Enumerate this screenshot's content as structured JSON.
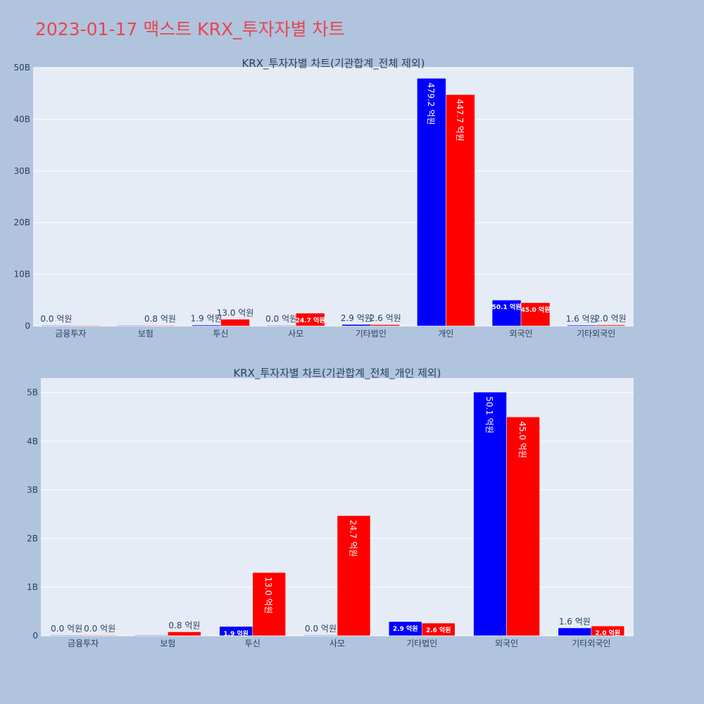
{
  "page": {
    "title": "2023-01-17 맥스트 KRX_투자자별 차트"
  },
  "colors": {
    "background": "#b0c4de",
    "plot_bg": "#e5ecf6",
    "title": "#e8454f",
    "series_a": "#0000ff",
    "series_b": "#ff0000"
  },
  "chart_data": [
    {
      "type": "bar",
      "title": "KRX_투자자별 차트(기관합계_전체 제외)",
      "categories": [
        "금융투자",
        "보험",
        "투신",
        "사모",
        "기타법인",
        "개인",
        "외국인",
        "기타외국인"
      ],
      "ylim": [
        0,
        50
      ],
      "yticks": [
        0,
        10,
        20,
        30,
        40,
        50
      ],
      "ytick_labels": [
        "0",
        "10B",
        "20B",
        "30B",
        "40B",
        "50B"
      ],
      "grid": true,
      "series": [
        {
          "values": [
            0.0,
            0.0,
            0.19,
            0.0,
            0.29,
            47.92,
            5.01,
            0.16
          ],
          "labels": [
            "0.0 억원",
            "",
            "1.9 억원",
            "0.0 억원",
            "2.9 억원",
            "479.2 억원",
            "50.1 억원",
            "1.6 억원"
          ]
        },
        {
          "values": [
            0.0,
            0.08,
            1.3,
            2.47,
            0.26,
            44.77,
            4.5,
            0.2
          ],
          "labels": [
            "",
            "0.8 억원",
            "13.0 억원",
            "24.7 억원",
            "2.6 억원",
            "447.7 억원",
            "45.0 억원",
            "2.0 억원"
          ]
        }
      ]
    },
    {
      "type": "bar",
      "title": "KRX_투자자별 차트(기관합계_전체_개인 제외)",
      "categories": [
        "금융투자",
        "보험",
        "투신",
        "사모",
        "기타법인",
        "외국인",
        "기타외국인"
      ],
      "ylim": [
        0,
        5.3
      ],
      "yticks": [
        0,
        1,
        2,
        3,
        4,
        5
      ],
      "ytick_labels": [
        "0",
        "1B",
        "2B",
        "3B",
        "4B",
        "5B"
      ],
      "grid": true,
      "series": [
        {
          "values": [
            0.0,
            0.0,
            0.19,
            0.0,
            0.29,
            5.01,
            0.16
          ],
          "labels": [
            "0.0 억원",
            "",
            "1.9 억원",
            "0.0 억원",
            "2.9 억원",
            "50.1 억원",
            "1.6 억원"
          ]
        },
        {
          "values": [
            0.0,
            0.08,
            1.3,
            2.47,
            0.26,
            4.5,
            0.2
          ],
          "labels": [
            "0.0 억원",
            "0.8 억원",
            "13.0 억원",
            "24.7 억원",
            "2.6 억원",
            "45.0 억원",
            "2.0 억원"
          ]
        }
      ]
    }
  ]
}
